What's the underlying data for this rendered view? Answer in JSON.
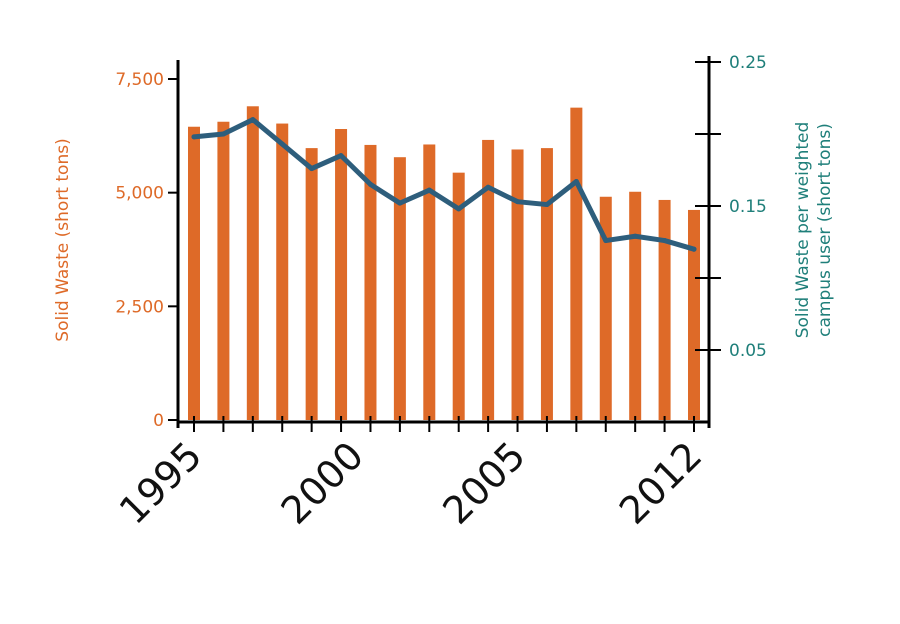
{
  "chart_data": {
    "type": "bar",
    "x": [
      1995,
      1996,
      1997,
      1998,
      1999,
      2000,
      2001,
      2002,
      2003,
      2004,
      2005,
      2006,
      2007,
      2008,
      2009,
      2010,
      2011,
      2012
    ],
    "x_tick_labels": [
      "1995",
      "2000",
      "2005",
      "2012"
    ],
    "x_tick_label_positions": [
      1995,
      2000.5,
      2006,
      2012
    ],
    "series": [
      {
        "kind": "bar",
        "axis": "left",
        "color": "#de6a28",
        "values": [
          6450,
          6560,
          6900,
          6520,
          5980,
          6400,
          6050,
          5780,
          6060,
          5440,
          6160,
          5950,
          5980,
          6870,
          4910,
          5020,
          4840,
          4620
        ]
      },
      {
        "kind": "line",
        "axis": "right",
        "color": "#2e5e7c",
        "values": [
          0.198,
          0.2,
          0.21,
          0.193,
          0.176,
          0.185,
          0.165,
          0.152,
          0.161,
          0.148,
          0.163,
          0.153,
          0.151,
          0.167,
          0.126,
          0.129,
          0.126,
          0.12
        ]
      }
    ],
    "y_left": {
      "label": "Solid Waste  (short tons)",
      "lim": [
        0,
        7500
      ],
      "ticks": [
        0,
        2500,
        5000,
        7500
      ],
      "tick_labels": [
        "0",
        "2,500",
        "5,000",
        "7,500"
      ],
      "color": "#de6a28"
    },
    "y_right": {
      "label_lines": [
        "Solid Waste per weighted",
        "campus user  (short tons)"
      ],
      "lim": [
        0,
        0.25
      ],
      "ticks": [
        0.05,
        0.1,
        0.15,
        0.2,
        0.25
      ],
      "tick_labels": [
        "0.05",
        "0.15",
        "0.25"
      ],
      "labeled_ticks": [
        0.05,
        0.15,
        0.25
      ],
      "color": "#1f7f7a"
    },
    "grid": false,
    "legend": "none"
  }
}
